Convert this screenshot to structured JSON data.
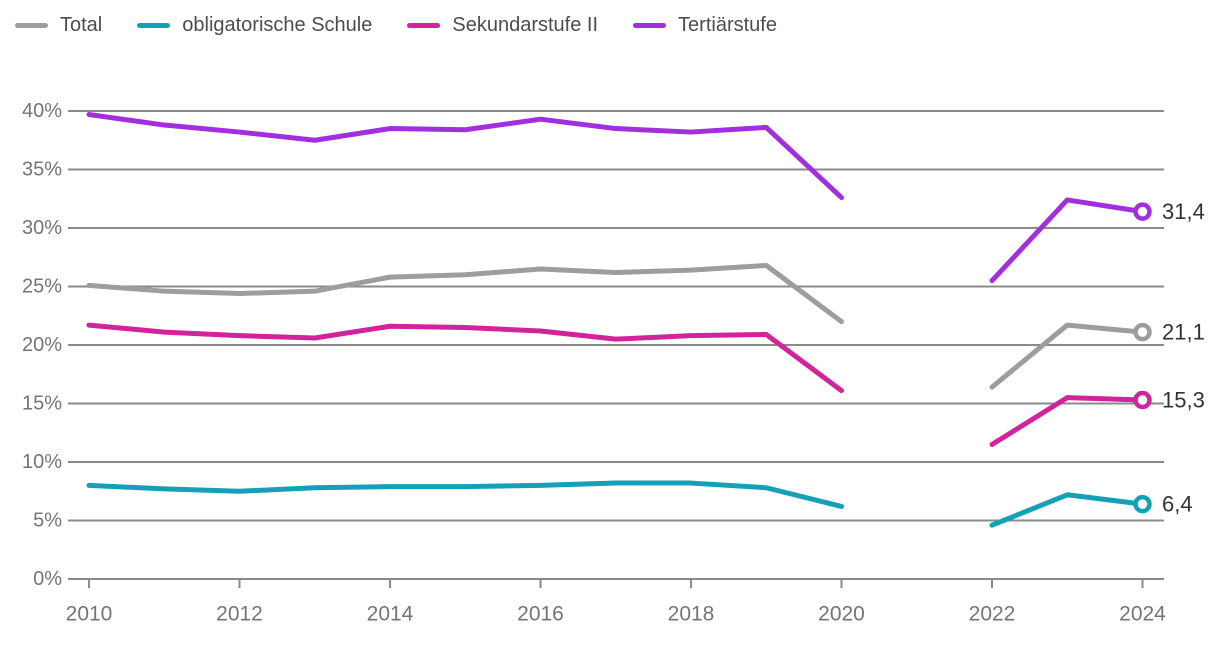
{
  "chart_data": {
    "type": "line",
    "title": "",
    "xlabel": "",
    "ylabel": "",
    "ylim": [
      0,
      40
    ],
    "grid": true,
    "legend_position": "top-left",
    "x_gap_note": "no data for 2021 (line gap between 2020 and 2022)",
    "y_ticks": [
      {
        "value": 0,
        "label": "0%"
      },
      {
        "value": 5,
        "label": "5%"
      },
      {
        "value": 10,
        "label": "10%"
      },
      {
        "value": 15,
        "label": "15%"
      },
      {
        "value": 20,
        "label": "20%"
      },
      {
        "value": 25,
        "label": "25%"
      },
      {
        "value": 30,
        "label": "30%"
      },
      {
        "value": 35,
        "label": "35%"
      },
      {
        "value": 40,
        "label": "40%"
      }
    ],
    "x_ticks": [
      {
        "value": 2010,
        "label": "2010"
      },
      {
        "value": 2012,
        "label": "2012"
      },
      {
        "value": 2014,
        "label": "2014"
      },
      {
        "value": 2016,
        "label": "2016"
      },
      {
        "value": 2018,
        "label": "2018"
      },
      {
        "value": 2020,
        "label": "2020"
      },
      {
        "value": 2022,
        "label": "2022"
      },
      {
        "value": 2024,
        "label": "2024"
      }
    ],
    "series": [
      {
        "name": "Total",
        "color": "#9d9d9d",
        "end_label": "21,1",
        "segments": [
          {
            "x": [
              2010,
              2011,
              2012,
              2013,
              2014,
              2015,
              2016,
              2017,
              2018,
              2019,
              2020
            ],
            "y": [
              25.1,
              24.6,
              24.4,
              24.6,
              25.8,
              26.0,
              26.5,
              26.2,
              26.4,
              26.8,
              22.0
            ]
          },
          {
            "x": [
              2022,
              2023,
              2024
            ],
            "y": [
              16.4,
              21.7,
              21.1
            ]
          }
        ]
      },
      {
        "name": "obligatorische Schule",
        "color": "#14a0b6",
        "end_label": "6,4",
        "segments": [
          {
            "x": [
              2010,
              2011,
              2012,
              2013,
              2014,
              2015,
              2016,
              2017,
              2018,
              2019,
              2020
            ],
            "y": [
              8.0,
              7.7,
              7.5,
              7.8,
              7.9,
              7.9,
              8.0,
              8.2,
              8.2,
              7.8,
              6.2
            ]
          },
          {
            "x": [
              2022,
              2023,
              2024
            ],
            "y": [
              4.6,
              7.2,
              6.4
            ]
          }
        ]
      },
      {
        "name": "Sekundarstufe II",
        "color": "#d2239c",
        "end_label": "15,3",
        "segments": [
          {
            "x": [
              2010,
              2011,
              2012,
              2013,
              2014,
              2015,
              2016,
              2017,
              2018,
              2019,
              2020
            ],
            "y": [
              21.7,
              21.1,
              20.8,
              20.6,
              21.6,
              21.5,
              21.2,
              20.5,
              20.8,
              20.9,
              16.1
            ]
          },
          {
            "x": [
              2022,
              2023,
              2024
            ],
            "y": [
              11.5,
              15.5,
              15.3
            ]
          }
        ]
      },
      {
        "name": "Tertiärstufe",
        "color": "#a32ee0",
        "end_label": "31,4",
        "segments": [
          {
            "x": [
              2010,
              2011,
              2012,
              2013,
              2014,
              2015,
              2016,
              2017,
              2018,
              2019,
              2020
            ],
            "y": [
              39.7,
              38.8,
              38.2,
              37.5,
              38.5,
              38.4,
              39.3,
              38.5,
              38.2,
              38.6,
              32.6
            ]
          },
          {
            "x": [
              2022,
              2023,
              2024
            ],
            "y": [
              25.5,
              32.4,
              31.4
            ]
          }
        ]
      }
    ],
    "colors": {
      "gridline": "#8a8a8a",
      "axis_text": "#757575",
      "value_label_text": "#333333",
      "legend_text": "#4d4d4d",
      "marker_fill": "#ffffff"
    }
  }
}
